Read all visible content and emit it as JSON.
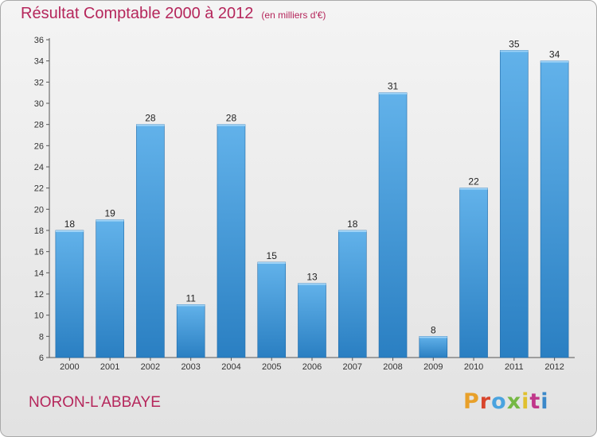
{
  "header": {
    "title": "Résultat Comptable 2000 à 2012",
    "unit": "(en milliers d'€)"
  },
  "footer": {
    "region": "NORON-L'ABBAYE",
    "logo_text": "Proxiti",
    "logo_colors": [
      "#e8a02a",
      "#d8452c",
      "#4aa3df",
      "#75b843",
      "#e0c02e",
      "#c0378a",
      "#3b88c9"
    ]
  },
  "colors": {
    "title": "#b5265b",
    "bar_top": "#62b2ea",
    "bar_bottom": "#2a7fc2",
    "axis": "#555555"
  },
  "chart_data": {
    "type": "bar",
    "title": "Résultat Comptable 2000 à 2012",
    "subtitle": "(en milliers d'€)",
    "xlabel": "",
    "ylabel": "",
    "categories": [
      "2000",
      "2001",
      "2002",
      "2003",
      "2004",
      "2005",
      "2006",
      "2007",
      "2008",
      "2009",
      "2010",
      "2011",
      "2012"
    ],
    "values": [
      18,
      19,
      28,
      11,
      28,
      15,
      13,
      18,
      31,
      8,
      22,
      35,
      34
    ],
    "ylim": [
      6,
      36
    ],
    "yticks": [
      6,
      8,
      10,
      12,
      14,
      16,
      18,
      20,
      22,
      24,
      26,
      28,
      30,
      32,
      34,
      36
    ],
    "grid": false,
    "data_labels": true
  }
}
